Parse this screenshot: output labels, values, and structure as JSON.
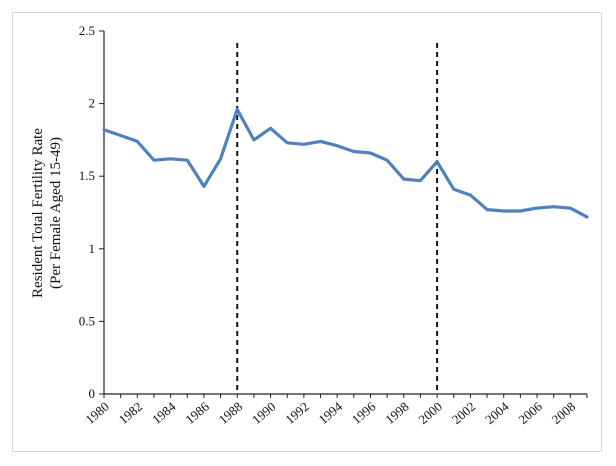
{
  "chart_data": {
    "type": "line",
    "title": "",
    "ylabel_line1": "Resident Total Fertility Rate",
    "ylabel_line2": "(Per Female Aged 15-49)",
    "xlabel": "",
    "ylim": [
      0,
      2.5
    ],
    "xlim": [
      1980,
      2009
    ],
    "y_ticks": [
      "0",
      "0.5",
      "1",
      "1.5",
      "2",
      "2.5"
    ],
    "x_ticks": [
      "1980",
      "1982",
      "1984",
      "1986",
      "1988",
      "1990",
      "1992",
      "1994",
      "1996",
      "1998",
      "2000",
      "2002",
      "2004",
      "2006",
      "2008"
    ],
    "vertical_markers": [
      1988,
      2000
    ],
    "line_color": "#4f81bd",
    "grid": false,
    "series": [
      {
        "x": [
          1980,
          1981,
          1982,
          1983,
          1984,
          1985,
          1986,
          1987,
          1988,
          1989,
          1990,
          1991,
          1992,
          1993,
          1994,
          1995,
          1996,
          1997,
          1998,
          1999,
          2000,
          2001,
          2002,
          2003,
          2004,
          2005,
          2006,
          2007,
          2008,
          2009
        ],
        "values": [
          1.82,
          1.78,
          1.74,
          1.61,
          1.62,
          1.61,
          1.43,
          1.62,
          1.96,
          1.75,
          1.83,
          1.73,
          1.72,
          1.74,
          1.71,
          1.67,
          1.66,
          1.61,
          1.48,
          1.47,
          1.6,
          1.41,
          1.37,
          1.27,
          1.26,
          1.26,
          1.28,
          1.29,
          1.28,
          1.22
        ]
      }
    ]
  }
}
